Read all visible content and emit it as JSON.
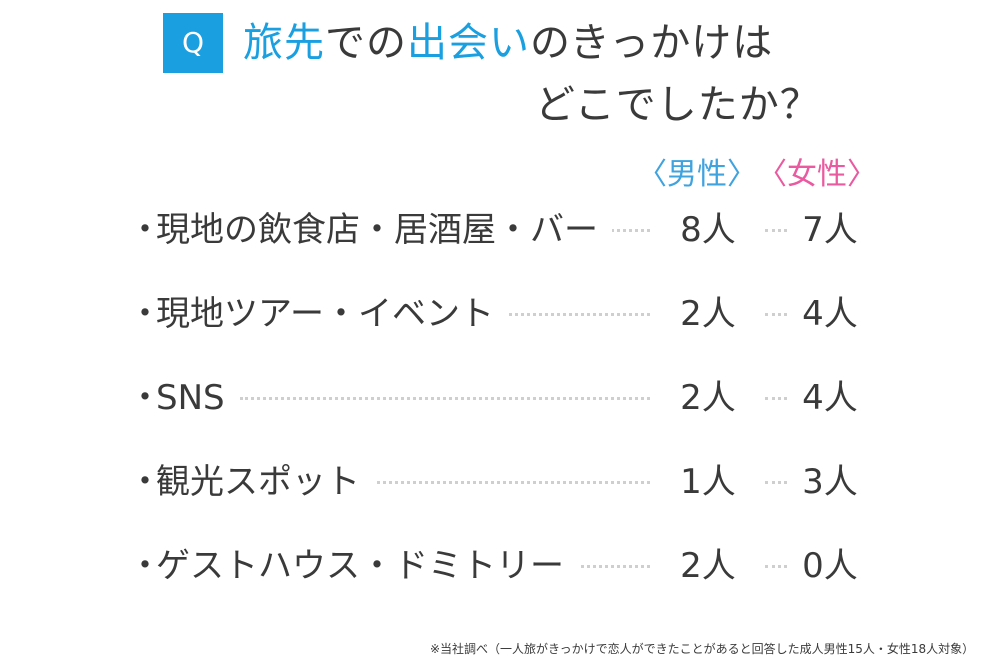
{
  "question": {
    "badge": "Q",
    "line1": [
      "旅先",
      "での",
      "出会い",
      "のきっかけは"
    ],
    "line2": "どこでしたか？"
  },
  "colors": {
    "accent_blue": "#1a9fe0",
    "male_color": "#3fa3df",
    "female_color": "#ea5aa0",
    "text": "#3a3a3a"
  },
  "chart_data": {
    "type": "table",
    "columns": [
      "〈男性〉",
      "〈女性〉"
    ],
    "bullet": "・",
    "rows": [
      {
        "label": "現地の飲食店・居酒屋・バー",
        "male": "8人",
        "female": "7人"
      },
      {
        "label": "現地ツアー・イベント",
        "male": "2人",
        "female": "4人"
      },
      {
        "label": "SNS",
        "male": "2人",
        "female": "4人"
      },
      {
        "label": "観光スポット",
        "male": "1人",
        "female": "3人"
      },
      {
        "label": "ゲストハウス・ドミトリー",
        "male": "2人",
        "female": "0人"
      }
    ],
    "values_male": [
      8,
      2,
      2,
      1,
      2
    ],
    "values_female": [
      7,
      4,
      4,
      3,
      0
    ]
  },
  "footnote": "※当社調べ（一人旅がきっかけで恋人ができたことがあると回答した成人男性15人・女性18人対象）"
}
